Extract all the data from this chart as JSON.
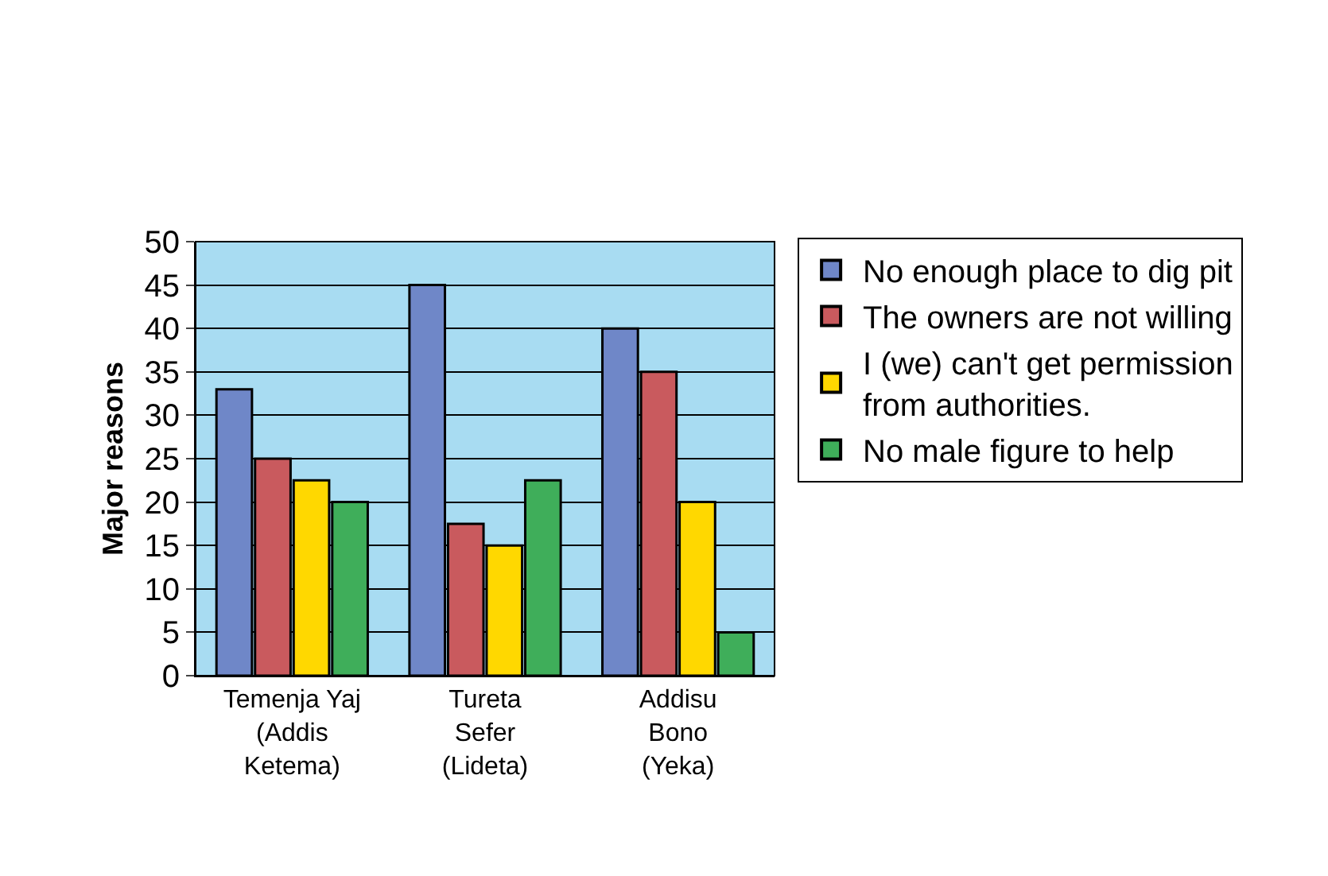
{
  "chart_data": {
    "type": "bar",
    "ylabel": "Major reasons",
    "categories": [
      "Temenja Yaj\n(Addis\nKetema)",
      "Tureta\nSefer\n(Lideta)",
      "Addisu\nBono\n(Yeka)"
    ],
    "series": [
      {
        "name": "No enough place to dig pit",
        "color": "#6f87c8",
        "values": [
          33,
          45,
          40
        ]
      },
      {
        "name": "The owners are not willing",
        "color": "#c95a5e",
        "values": [
          25,
          17.5,
          35
        ]
      },
      {
        "name": "I (we) can't get permission\nfrom authorities.",
        "color": "#ffd800",
        "values": [
          22.5,
          15,
          20
        ]
      },
      {
        "name": "No male figure to help",
        "color": "#3fae5a",
        "values": [
          20,
          22.5,
          5
        ]
      }
    ],
    "ylim": [
      0,
      50
    ],
    "yticks": [
      0,
      5,
      10,
      15,
      20,
      25,
      30,
      35,
      40,
      45,
      50
    ],
    "grid": "y",
    "legend": "right"
  }
}
